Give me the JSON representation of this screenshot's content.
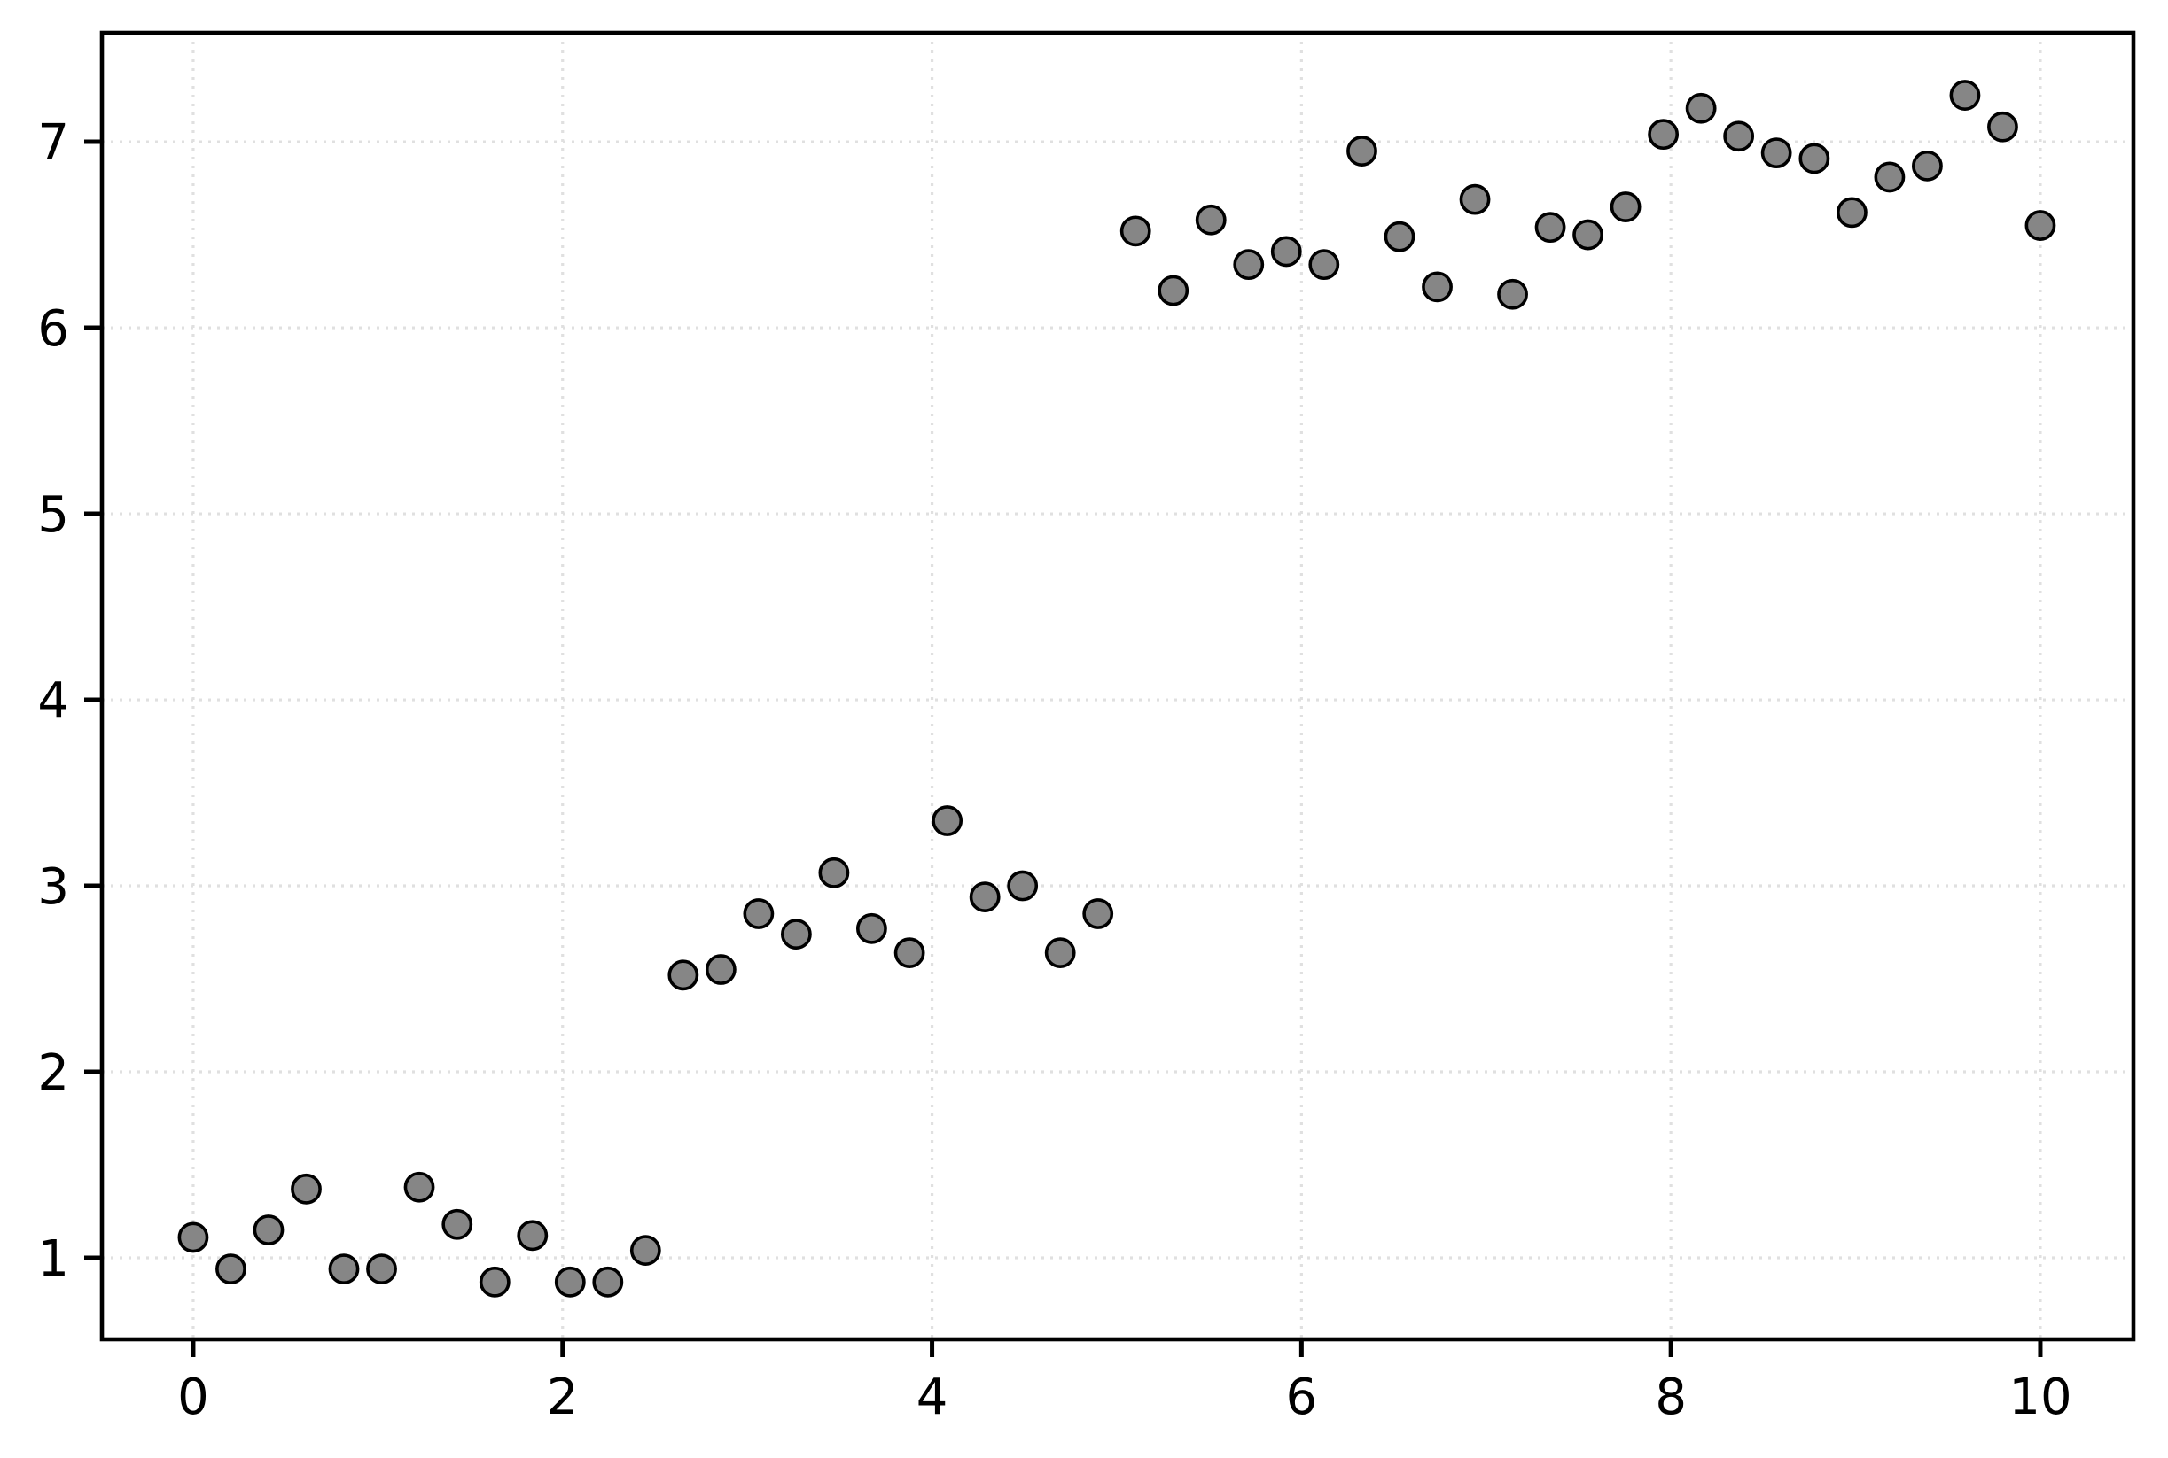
{
  "chart_data": {
    "type": "scatter",
    "title": "",
    "xlabel": "",
    "ylabel": "",
    "xlim": [
      -0.494,
      10.504
    ],
    "ylim": [
      0.562,
      7.586
    ],
    "xticks": [
      0,
      2,
      4,
      6,
      8,
      10
    ],
    "yticks": [
      1,
      2,
      3,
      4,
      5,
      6,
      7
    ],
    "grid": "dotted-major-both",
    "legend_position": "none",
    "marker": {
      "shape": "circle",
      "fill": "#868686",
      "edge": "#000000"
    },
    "points": [
      [
        0.0,
        1.11
      ],
      [
        0.204,
        0.94
      ],
      [
        0.408,
        1.15
      ],
      [
        0.612,
        1.37
      ],
      [
        0.816,
        0.94
      ],
      [
        1.02,
        0.94
      ],
      [
        1.224,
        1.38
      ],
      [
        1.429,
        1.18
      ],
      [
        1.633,
        0.87
      ],
      [
        1.837,
        1.12
      ],
      [
        2.041,
        0.87
      ],
      [
        2.245,
        0.87
      ],
      [
        2.449,
        1.04
      ],
      [
        2.653,
        2.52
      ],
      [
        2.857,
        2.55
      ],
      [
        3.061,
        2.85
      ],
      [
        3.265,
        2.74
      ],
      [
        3.469,
        3.07
      ],
      [
        3.673,
        2.77
      ],
      [
        3.878,
        2.64
      ],
      [
        4.082,
        3.35
      ],
      [
        4.286,
        2.94
      ],
      [
        4.49,
        3.0
      ],
      [
        4.694,
        2.64
      ],
      [
        4.898,
        2.85
      ],
      [
        5.102,
        6.52
      ],
      [
        5.306,
        6.2
      ],
      [
        5.51,
        6.58
      ],
      [
        5.714,
        6.34
      ],
      [
        5.918,
        6.41
      ],
      [
        6.122,
        6.34
      ],
      [
        6.327,
        6.95
      ],
      [
        6.531,
        6.49
      ],
      [
        6.735,
        6.22
      ],
      [
        6.939,
        6.69
      ],
      [
        7.143,
        6.18
      ],
      [
        7.347,
        6.54
      ],
      [
        7.551,
        6.5
      ],
      [
        7.755,
        6.65
      ],
      [
        7.959,
        7.04
      ],
      [
        8.163,
        7.18
      ],
      [
        8.367,
        7.03
      ],
      [
        8.571,
        6.94
      ],
      [
        8.776,
        6.91
      ],
      [
        8.98,
        6.62
      ],
      [
        9.184,
        6.81
      ],
      [
        9.388,
        6.87
      ],
      [
        9.592,
        7.25
      ],
      [
        9.796,
        7.08
      ],
      [
        10.0,
        6.55
      ]
    ]
  }
}
